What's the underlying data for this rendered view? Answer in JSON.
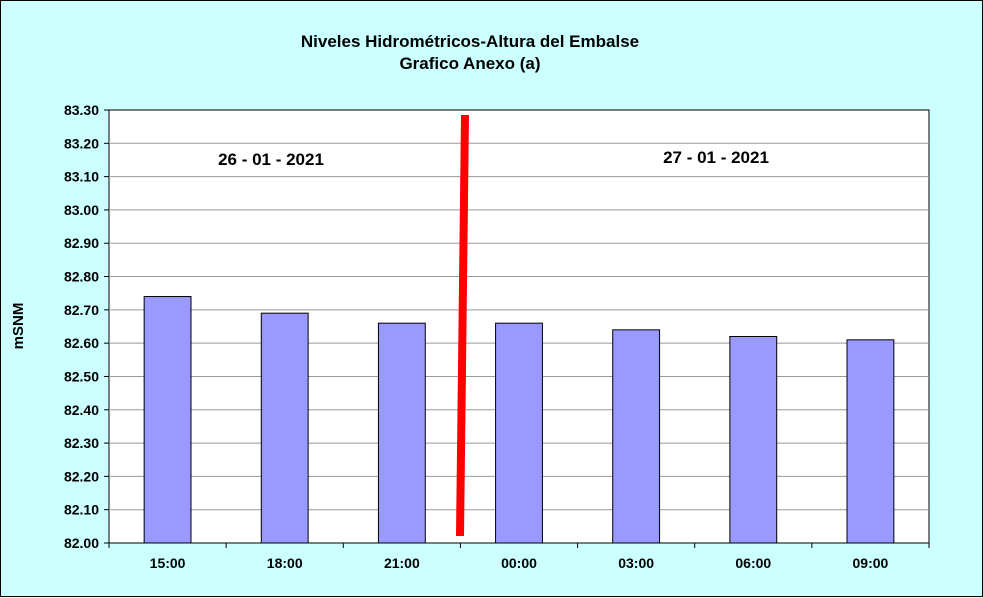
{
  "chart_data": {
    "type": "bar",
    "title": "Niveles Hidrométricos-Altura del Embalse",
    "subtitle": "Grafico Anexo (a)",
    "ylabel": "mSNM",
    "xlabel": "",
    "categories": [
      "15:00",
      "18:00",
      "21:00",
      "00:00",
      "03:00",
      "06:00",
      "09:00"
    ],
    "values": [
      82.74,
      82.69,
      82.66,
      82.66,
      82.64,
      82.62,
      82.61
    ],
    "ylim": [
      82.0,
      83.3
    ],
    "yticks": [
      "82.00",
      "82.10",
      "82.20",
      "82.30",
      "82.40",
      "82.50",
      "82.60",
      "82.70",
      "82.80",
      "82.90",
      "83.00",
      "83.10",
      "83.20",
      "83.30"
    ],
    "grid": true,
    "annotations": [
      "26 - 01 - 2021",
      "27 - 01 - 2021"
    ],
    "colors": {
      "bar": "#9999ff",
      "bar_edge": "#000000",
      "divider": "#ff0000",
      "plot_background": "#ffffff",
      "background": "#ccffff",
      "grid": "#999999"
    }
  }
}
